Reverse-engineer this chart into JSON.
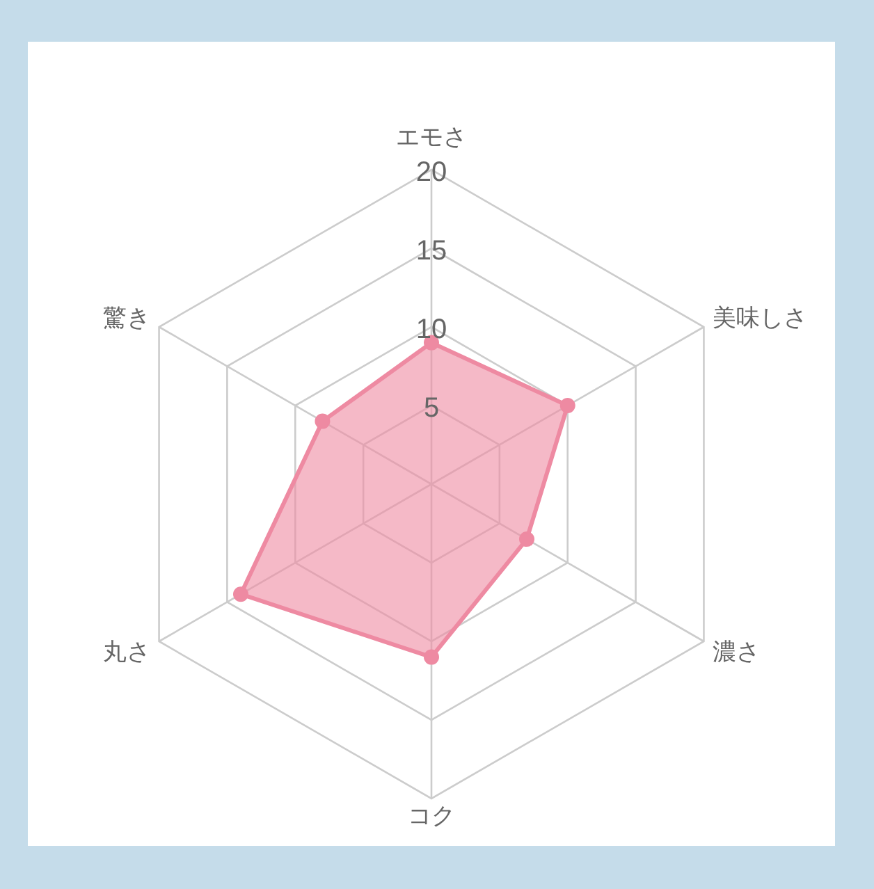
{
  "chart_data": {
    "type": "radar",
    "categories": [
      "エモさ",
      "美味しさ",
      "濃さ",
      "コク",
      "丸さ",
      "驚き"
    ],
    "series": [
      {
        "color": "#ee8aa2",
        "values": [
          9,
          10,
          7,
          11,
          14,
          8
        ]
      }
    ],
    "ylim": [
      0,
      20
    ],
    "yticks": [
      5,
      10,
      15,
      20
    ],
    "grid": true,
    "marker": "circle"
  }
}
